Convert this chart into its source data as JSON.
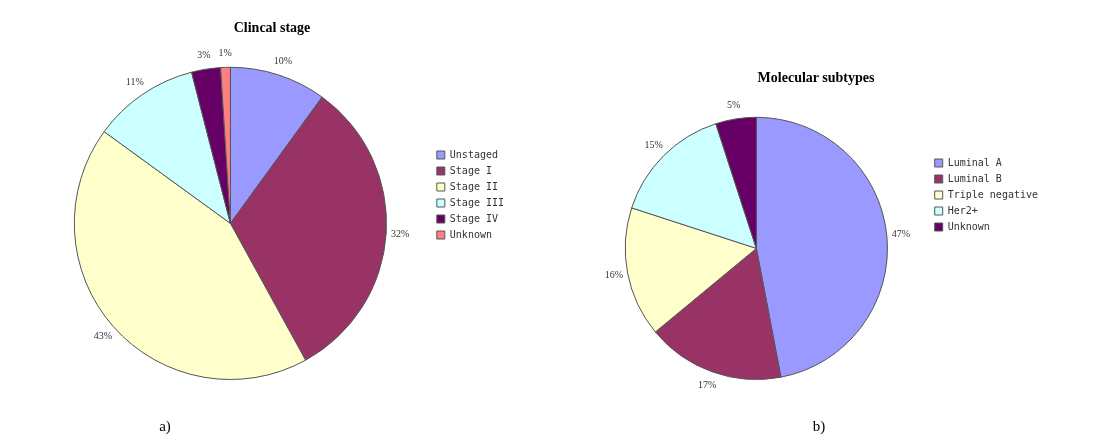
{
  "chart_data": [
    {
      "type": "pie",
      "title": "Clincal stage",
      "categories": [
        "Unstaged",
        "Stage I",
        "Stage II",
        "Stage III",
        "Stage IV",
        "Unknown"
      ],
      "values": [
        10,
        32,
        43,
        11,
        3,
        1
      ],
      "colors": [
        "#9999ff",
        "#993366",
        "#ffffcc",
        "#ccffff",
        "#660066",
        "#ff8080"
      ],
      "value_labels": [
        "10%",
        "32%",
        "43%",
        "11%",
        "3%",
        "1%"
      ],
      "legend": "right",
      "annotations": [
        "a)"
      ]
    },
    {
      "type": "pie",
      "title": "Molecular subtypes",
      "categories": [
        "Luminal A",
        "Luminal B",
        "Triple negative",
        "Her2+",
        "Unknown"
      ],
      "values": [
        47,
        17,
        16,
        15,
        5
      ],
      "colors": [
        "#9999ff",
        "#993366",
        "#ffffcc",
        "#ccffff",
        "#660066"
      ],
      "value_labels": [
        "47%",
        "17%",
        "16%",
        "15%",
        "5%"
      ],
      "legend": "right",
      "annotations": [
        "b)"
      ]
    }
  ]
}
